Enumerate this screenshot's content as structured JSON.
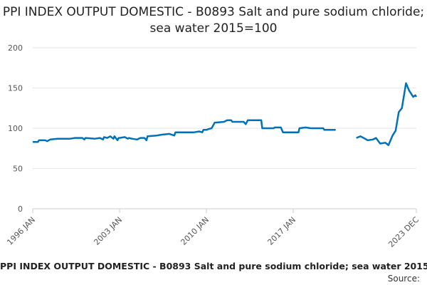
{
  "chart_data": {
    "type": "line",
    "title": "PPI INDEX OUTPUT DOMESTIC - B0893 Salt and pure sodium chloride; sea water 2015=100",
    "xlabel": "",
    "ylabel": "",
    "ylim": [
      0,
      200
    ],
    "yticks": [
      0,
      50,
      100,
      150,
      200
    ],
    "xticks": [
      "1996 JAN",
      "2003 JAN",
      "2010 JAN",
      "2017 JAN",
      "2023 DEC"
    ],
    "grid": true,
    "line_color": "#0072b9",
    "series": [
      {
        "name": "PPI INDEX OUTPUT DOMESTIC - B0893 Salt and pure sodium chloride; sea water 2015=100",
        "points": [
          [
            "1996-01",
            83
          ],
          [
            "1996-06",
            83
          ],
          [
            "1996-07",
            85
          ],
          [
            "1997-01",
            85
          ],
          [
            "1997-03",
            84
          ],
          [
            "1997-06",
            86
          ],
          [
            "1998-01",
            87
          ],
          [
            "1999-01",
            87
          ],
          [
            "1999-06",
            88
          ],
          [
            "2000-01",
            88
          ],
          [
            "2000-03",
            86
          ],
          [
            "2000-04",
            88
          ],
          [
            "2001-01",
            87
          ],
          [
            "2001-06",
            88
          ],
          [
            "2001-09",
            86
          ],
          [
            "2001-10",
            89
          ],
          [
            "2002-01",
            88
          ],
          [
            "2002-04",
            90
          ],
          [
            "2002-07",
            87
          ],
          [
            "2002-08",
            90
          ],
          [
            "2002-11",
            85
          ],
          [
            "2002-12",
            88
          ],
          [
            "2003-01",
            88
          ],
          [
            "2003-06",
            89
          ],
          [
            "2003-09",
            87
          ],
          [
            "2003-10",
            88
          ],
          [
            "2004-01",
            87
          ],
          [
            "2004-06",
            86
          ],
          [
            "2004-09",
            88
          ],
          [
            "2005-01",
            88
          ],
          [
            "2005-03",
            85
          ],
          [
            "2005-04",
            90
          ],
          [
            "2006-01",
            91
          ],
          [
            "2006-06",
            92
          ],
          [
            "2007-01",
            93
          ],
          [
            "2007-06",
            91
          ],
          [
            "2007-07",
            95
          ],
          [
            "2008-01",
            95
          ],
          [
            "2009-01",
            95
          ],
          [
            "2009-06",
            96
          ],
          [
            "2009-09",
            95
          ],
          [
            "2009-10",
            98
          ],
          [
            "2010-01",
            98
          ],
          [
            "2010-03",
            99
          ],
          [
            "2010-06",
            100
          ],
          [
            "2010-09",
            107
          ],
          [
            "2011-06",
            108
          ],
          [
            "2011-09",
            110
          ],
          [
            "2012-01",
            110
          ],
          [
            "2012-02",
            108
          ],
          [
            "2013-01",
            108
          ],
          [
            "2013-03",
            105
          ],
          [
            "2013-05",
            110
          ],
          [
            "2014-01",
            110
          ],
          [
            "2014-06",
            110
          ],
          [
            "2014-07",
            100
          ],
          [
            "2015-06",
            100
          ],
          [
            "2015-07",
            101
          ],
          [
            "2016-01",
            101
          ],
          [
            "2016-03",
            95
          ],
          [
            "2017-06",
            95
          ],
          [
            "2017-07",
            100
          ],
          [
            "2018-01",
            101
          ],
          [
            "2018-06",
            100
          ],
          [
            "2019-01",
            100
          ],
          [
            "2019-06",
            100
          ],
          [
            "2019-07",
            98
          ],
          [
            "2020-01",
            98
          ],
          [
            "2020-06",
            98
          ],
          null,
          [
            "2022-02",
            88
          ],
          [
            "2022-06",
            90
          ],
          [
            "2022-09",
            88
          ],
          [
            "2023-01",
            85
          ],
          [
            "2023-06",
            86
          ],
          [
            "2023-09",
            88
          ],
          [
            "2024-01",
            81
          ],
          [
            "2024-06",
            82
          ],
          [
            "2024-09",
            79
          ],
          [
            "2025-01",
            91
          ],
          [
            "2025-04",
            97
          ],
          [
            "2025-07",
            120
          ],
          [
            "2025-10",
            125
          ],
          [
            "2026-02",
            156
          ],
          [
            "2026-05",
            147
          ],
          [
            "2026-09",
            139
          ],
          [
            "2026-11",
            141
          ],
          [
            "2026-12",
            139
          ]
        ]
      }
    ]
  },
  "source_label": "Source:"
}
